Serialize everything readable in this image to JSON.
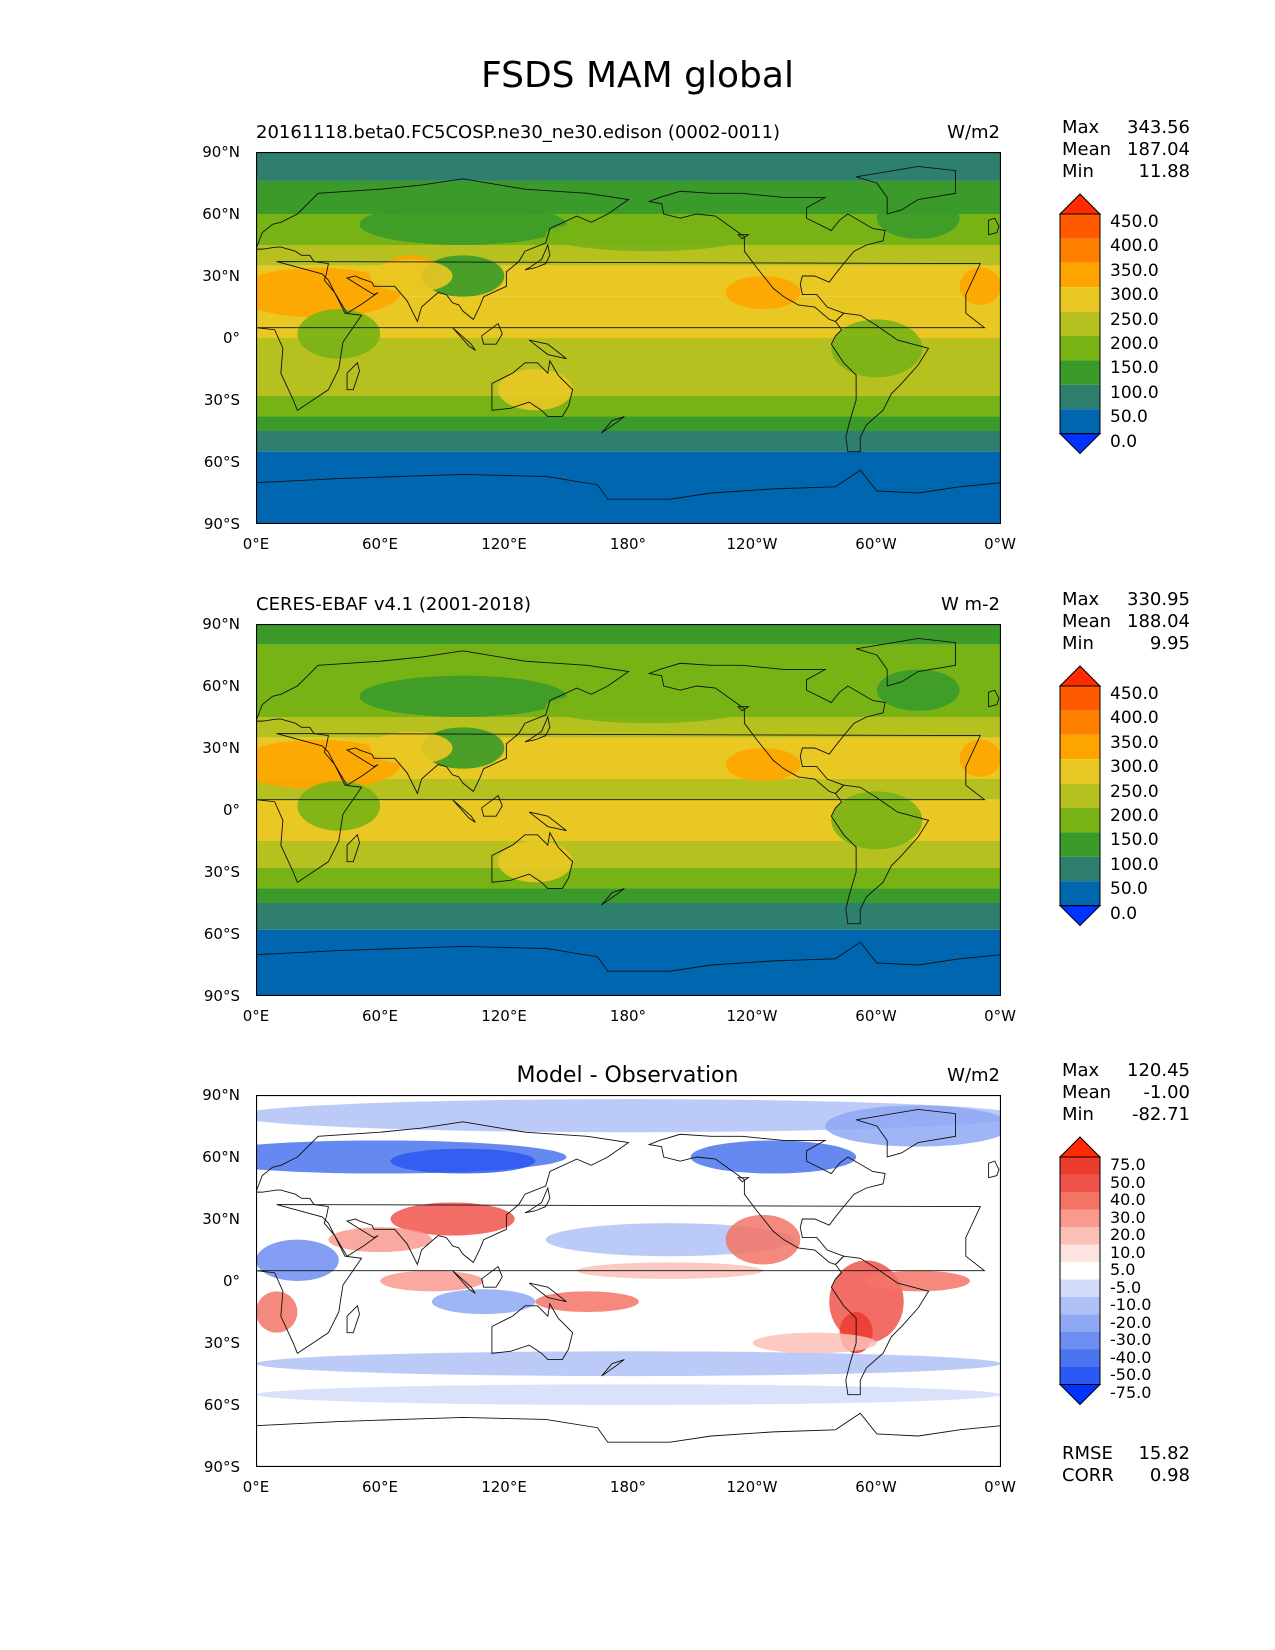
{
  "figure_title": "FSDS MAM global",
  "colors": {
    "c0": "#0033ff",
    "c1": "#0066b0",
    "c2": "#2e7f6e",
    "c3": "#3a9a2a",
    "c4": "#78b316",
    "c5": "#b6c01e",
    "c6": "#e9c824",
    "c7": "#ffa500",
    "c8": "#ff7f00",
    "c9": "#ff5a00",
    "c10": "#ff2a00",
    "d_neg": [
      "#0033ff",
      "#2b57f2",
      "#4a74ee",
      "#6d8df1",
      "#8fa8f4",
      "#b0c1f7",
      "#d2dcfa",
      "#ffffff"
    ],
    "d_pos": [
      "#fde4e1",
      "#fbc0b8",
      "#f89a8f",
      "#f47466",
      "#f0534a",
      "#ec3b2f",
      "#ff2a00"
    ]
  },
  "panels": [
    {
      "id": "model",
      "title": "20161118.beta0.FC5COSP.ne30_ne30.edison (0002-0011)",
      "units": "W/m2",
      "stats": {
        "max_label": "Max",
        "max": "343.56",
        "mean_label": "Mean",
        "mean": "187.04",
        "min_label": "Min",
        "min": "11.88"
      },
      "colorbar_ticks": [
        "450.0",
        "400.0",
        "350.0",
        "300.0",
        "250.0",
        "200.0",
        "150.0",
        "100.0",
        "50.0",
        "0.0"
      ]
    },
    {
      "id": "obs",
      "title": "CERES-EBAF v4.1 (2001-2018)",
      "units": "W m-2",
      "stats": {
        "max_label": "Max",
        "max": "330.95",
        "mean_label": "Mean",
        "mean": "188.04",
        "min_label": "Min",
        "min": "9.95"
      },
      "colorbar_ticks": [
        "450.0",
        "400.0",
        "350.0",
        "300.0",
        "250.0",
        "200.0",
        "150.0",
        "100.0",
        "50.0",
        "0.0"
      ]
    },
    {
      "id": "diff",
      "title": "Model - Observation",
      "units": "W/m2",
      "stats": {
        "max_label": "Max",
        "max": "120.45",
        "mean_label": "Mean",
        "mean": "-1.00",
        "min_label": "Min",
        "min": "-82.71"
      },
      "colorbar_ticks": [
        "75.0",
        "50.0",
        "40.0",
        "30.0",
        "20.0",
        "10.0",
        "5.0",
        "-5.0",
        "-10.0",
        "-20.0",
        "-30.0",
        "-40.0",
        "-50.0",
        "-75.0"
      ],
      "rmse_label": "RMSE",
      "rmse": "15.82",
      "corr_label": "CORR",
      "corr": "0.98"
    }
  ],
  "axes": {
    "lat_ticks": [
      "90°N",
      "60°N",
      "30°N",
      "0°",
      "30°S",
      "60°S",
      "90°S"
    ],
    "lon_ticks": [
      "0°E",
      "60°E",
      "120°E",
      "180°",
      "120°W",
      "60°W",
      "0°W"
    ]
  }
}
